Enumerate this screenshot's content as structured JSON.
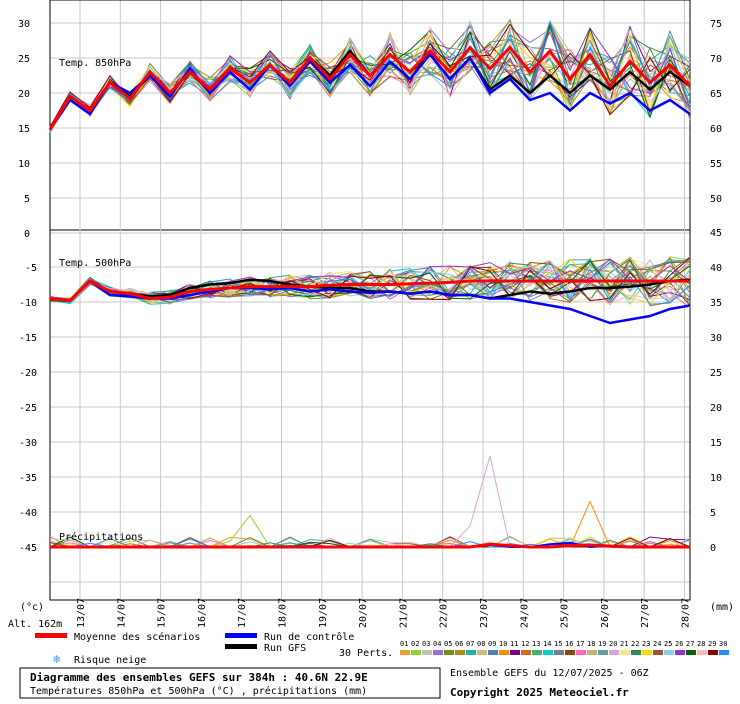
{
  "chart_data": {
    "type": "line",
    "x_labels": [
      "13/07",
      "14/07",
      "15/07",
      "16/07",
      "17/07",
      "18/07",
      "19/07",
      "20/07",
      "21/07",
      "22/07",
      "23/07",
      "24/07",
      "25/07",
      "26/07",
      "27/07",
      "28/07"
    ],
    "t850": {
      "title": "Temp. 850hPa",
      "left_ticks": [
        "30",
        "25",
        "20",
        "15",
        "10",
        "5",
        "0"
      ],
      "right_ticks": [
        "75",
        "70",
        "65",
        "60",
        "55",
        "50"
      ],
      "mean": [
        14.8,
        19.5,
        17.5,
        21.5,
        19.2,
        23.0,
        20.0,
        23.0,
        20.5,
        23.5,
        21.5,
        24.0,
        21.5,
        25.0,
        22.0,
        25.5,
        22.5,
        25.5,
        23.0,
        26.0,
        23.0,
        26.5,
        23.5,
        26.5,
        23.0,
        26.0,
        22.0,
        25.5,
        21.0,
        24.5,
        21.5,
        24.0,
        21.0
      ],
      "control": [
        14.8,
        19.0,
        17.0,
        21.5,
        20.0,
        22.5,
        19.5,
        23.5,
        20.0,
        23.0,
        20.5,
        24.0,
        21.0,
        24.5,
        21.5,
        24.0,
        21.0,
        24.5,
        22.0,
        25.5,
        22.0,
        25.0,
        20.0,
        22.0,
        19.0,
        20.0,
        17.5,
        20.0,
        18.5,
        20.0,
        17.5,
        19.0,
        17.0
      ],
      "gfs": [
        14.8,
        19.5,
        17.5,
        21.5,
        19.5,
        22.5,
        20.0,
        23.0,
        20.5,
        23.5,
        21.5,
        24.0,
        21.5,
        25.0,
        22.5,
        26.0,
        22.5,
        25.5,
        23.0,
        25.5,
        22.0,
        25.0,
        20.5,
        22.5,
        20.0,
        22.5,
        20.0,
        22.5,
        20.5,
        23.0,
        20.5,
        23.0,
        21.0
      ]
    },
    "t500": {
      "title": "Temp. 500hPa",
      "left_ticks": [
        "-5",
        "-10",
        "-15",
        "-20",
        "-25",
        "-30",
        "-35",
        "-40",
        "-45"
      ],
      "right_ticks": [
        "45",
        "40",
        "35",
        "30",
        "25",
        "20",
        "15",
        "10",
        "5",
        "0"
      ],
      "mean": [
        -9.5,
        -9.8,
        -7.0,
        -8.5,
        -8.8,
        -9.5,
        -9.3,
        -8.5,
        -8.2,
        -8.0,
        -7.8,
        -7.8,
        -7.8,
        -7.8,
        -7.6,
        -7.5,
        -7.5,
        -7.5,
        -7.4,
        -7.3,
        -7.2,
        -7.0,
        -7.0,
        -7.0,
        -7.0,
        -7.0,
        -7.0,
        -7.0,
        -7.0,
        -7.0,
        -7.0,
        -7.0,
        -7.0
      ],
      "control": [
        -9.5,
        -9.8,
        -7.0,
        -9.0,
        -9.2,
        -9.5,
        -9.5,
        -9.0,
        -8.5,
        -8.0,
        -8.0,
        -8.2,
        -8.0,
        -8.5,
        -8.2,
        -8.5,
        -8.7,
        -8.5,
        -8.8,
        -8.5,
        -9.0,
        -9.0,
        -9.5,
        -9.5,
        -10.0,
        -10.5,
        -11.0,
        -12.0,
        -13.0,
        -12.5,
        -12.0,
        -11.0,
        -10.5
      ],
      "gfs": [
        -9.5,
        -9.8,
        -7.0,
        -8.5,
        -8.8,
        -9.2,
        -9.0,
        -8.0,
        -7.5,
        -7.3,
        -6.8,
        -7.0,
        -7.5,
        -7.8,
        -8.0,
        -8.0,
        -8.5,
        -8.5,
        -8.8,
        -8.5,
        -9.0,
        -9.0,
        -9.5,
        -9.0,
        -8.5,
        -8.8,
        -8.5,
        -8.0,
        -8.0,
        -7.8,
        -7.5,
        -7.0,
        -6.8
      ]
    },
    "precip": {
      "title": "Précipitations",
      "mean": [
        0,
        0,
        0,
        0,
        0,
        0,
        0,
        0,
        0,
        0,
        0,
        0,
        0,
        0,
        0,
        0,
        0,
        0,
        0,
        0,
        0,
        0,
        0.4,
        0.2,
        0,
        0,
        0.2,
        0.3,
        0.1,
        0,
        0,
        0,
        0
      ],
      "control": [
        0,
        0,
        0,
        0,
        0,
        0,
        0,
        0,
        0,
        0,
        0,
        0,
        0,
        0,
        0,
        0,
        0,
        0,
        0,
        0,
        0,
        0,
        0.3,
        0,
        0,
        0.4,
        0.6,
        0,
        0.2,
        0,
        0,
        0,
        0
      ]
    },
    "legend": {
      "mean_label": "Moyenne des scénarios",
      "control_label": "Run de contrôle",
      "gfs_label": "Run GFS",
      "snow_label": "Risque neige",
      "perts_label": "30 Perts.",
      "perts": [
        "01",
        "02",
        "03",
        "04",
        "05",
        "06",
        "07",
        "08",
        "09",
        "10",
        "11",
        "12",
        "13",
        "14",
        "15",
        "16",
        "17",
        "18",
        "19",
        "20",
        "21",
        "22",
        "23",
        "24",
        "25",
        "26",
        "27",
        "28",
        "29",
        "30"
      ],
      "perts_colors": [
        "#e8a030",
        "#9acd32",
        "#c0c0c0",
        "#9370db",
        "#6b8e23",
        "#b8860b",
        "#20b2aa",
        "#cdbe70",
        "#4682b4",
        "#ff8c00",
        "#800080",
        "#d2691e",
        "#3cb371",
        "#00ced1",
        "#708090",
        "#8b4513",
        "#ff69b4",
        "#bdb76b",
        "#5f9ea0",
        "#dda0dd",
        "#f0e68c",
        "#2e8b57",
        "#ffd700",
        "#a0522d",
        "#87ceeb",
        "#9932cc",
        "#006400",
        "#ffb6c1",
        "#8b0000",
        "#1e90ff"
      ]
    },
    "unit_left": "(°c)",
    "unit_right": "(mm)",
    "altitude": "Alt. 162m"
  },
  "footer": {
    "title": "Diagramme des ensembles GEFS sur 384h : 40.6N 22.9E",
    "subtitle": "Températures 850hPa et 500hPa (°C) , précipitations (mm)",
    "ensemble": "Ensemble GEFS du 12/07/2025 - 06Z",
    "copyright": "Copyright 2025 Meteociel.fr"
  }
}
